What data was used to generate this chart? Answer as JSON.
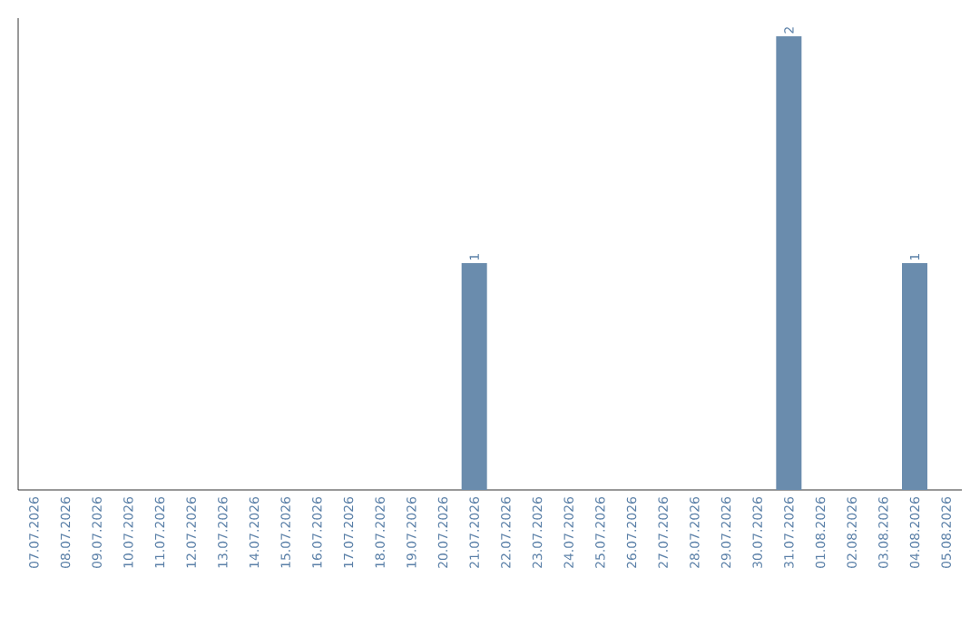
{
  "chart_data": {
    "type": "bar",
    "categories": [
      "07.07.2026",
      "08.07.2026",
      "09.07.2026",
      "10.07.2026",
      "11.07.2026",
      "12.07.2026",
      "13.07.2026",
      "14.07.2026",
      "15.07.2026",
      "16.07.2026",
      "17.07.2026",
      "18.07.2026",
      "19.07.2026",
      "20.07.2026",
      "21.07.2026",
      "22.07.2026",
      "23.07.2026",
      "24.07.2026",
      "25.07.2026",
      "26.07.2026",
      "27.07.2026",
      "28.07.2026",
      "29.07.2026",
      "30.07.2026",
      "31.07.2026",
      "01.08.2026",
      "02.08.2026",
      "03.08.2026",
      "04.08.2026",
      "05.08.2026"
    ],
    "values": [
      null,
      null,
      null,
      null,
      null,
      null,
      null,
      null,
      null,
      null,
      null,
      null,
      null,
      null,
      1,
      null,
      null,
      null,
      null,
      null,
      null,
      null,
      null,
      null,
      2,
      null,
      null,
      null,
      1,
      null
    ],
    "data_labels": true,
    "color": "#6a8cad",
    "grid": false
  }
}
